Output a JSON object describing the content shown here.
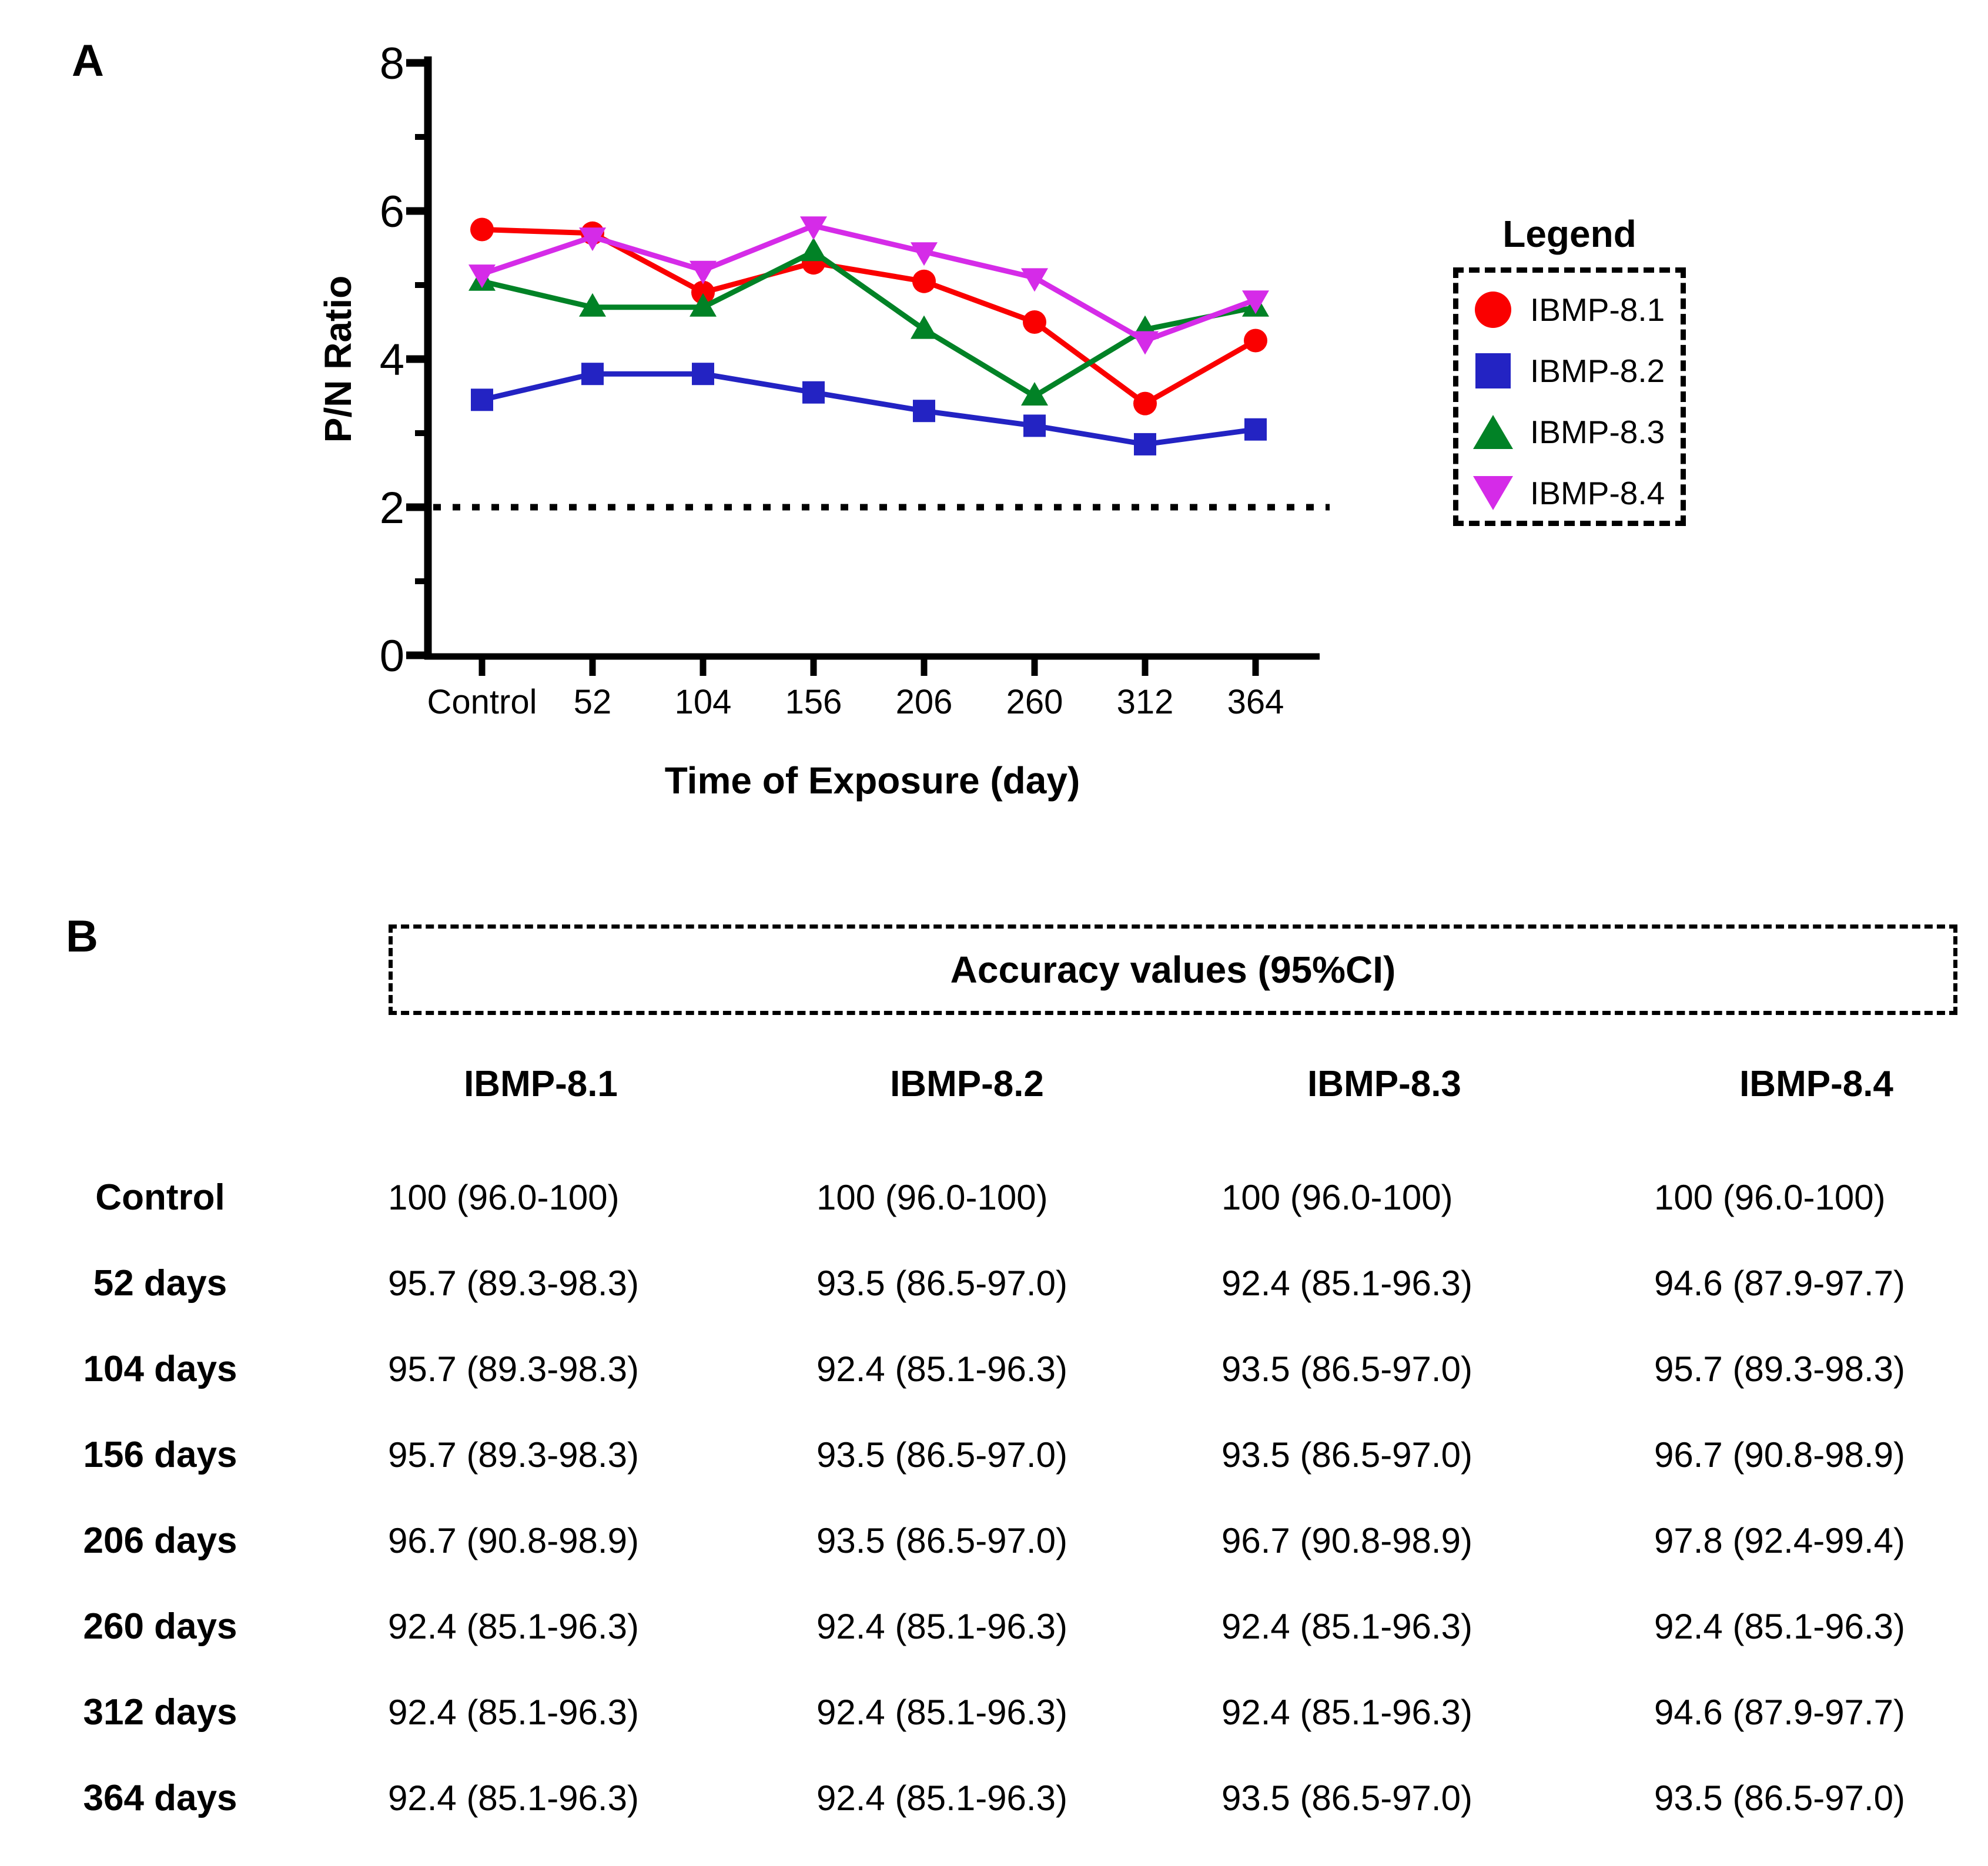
{
  "panel_a": {
    "label": "A",
    "legend_title": "Legend"
  },
  "chart_data": {
    "type": "line",
    "title": "",
    "categories": [
      "Control",
      "52",
      "104",
      "156",
      "206",
      "260",
      "312",
      "364"
    ],
    "xlabel": "Time of Exposure (day)",
    "ylabel": "P/N Ratio",
    "ylim": [
      0,
      8
    ],
    "yticks": [
      0,
      2,
      4,
      6,
      8
    ],
    "minor_yticks": [
      1,
      3,
      5,
      7
    ],
    "grid": false,
    "legend_position": "right",
    "reference_line": {
      "y": 2,
      "style": "dotted",
      "color": "#000000"
    },
    "series": [
      {
        "name": "IBMP-8.1",
        "marker": "circle",
        "color": "#FA0000",
        "values": [
          5.75,
          5.7,
          4.9,
          5.3,
          5.05,
          4.5,
          3.4,
          4.25
        ]
      },
      {
        "name": "IBMP-8.2",
        "marker": "square",
        "color": "#2323C3",
        "values": [
          3.45,
          3.8,
          3.8,
          3.55,
          3.3,
          3.1,
          2.85,
          3.05
        ]
      },
      {
        "name": "IBMP-8.3",
        "marker": "triangle-up",
        "color": "#018226",
        "values": [
          5.05,
          4.7,
          4.7,
          5.45,
          4.4,
          3.5,
          4.4,
          4.7
        ]
      },
      {
        "name": "IBMP-8.4",
        "marker": "triangle-down",
        "color": "#D52BE8",
        "values": [
          5.15,
          5.65,
          5.2,
          5.8,
          5.45,
          5.1,
          4.25,
          4.8
        ]
      }
    ]
  },
  "panel_b": {
    "label": "B",
    "title": "Accuracy values (95%CI)",
    "columns": [
      "IBMP-8.1",
      "IBMP-8.2",
      "IBMP-8.3",
      "IBMP-8.4"
    ],
    "rows": [
      {
        "label": "Control",
        "values": [
          "100 (96.0-100)",
          "100 (96.0-100)",
          "100 (96.0-100)",
          "100 (96.0-100)"
        ]
      },
      {
        "label": "52 days",
        "values": [
          "95.7 (89.3-98.3)",
          "93.5 (86.5-97.0)",
          "92.4 (85.1-96.3)",
          "94.6 (87.9-97.7)"
        ]
      },
      {
        "label": "104 days",
        "values": [
          "95.7 (89.3-98.3)",
          "92.4 (85.1-96.3)",
          "93.5 (86.5-97.0)",
          "95.7 (89.3-98.3)"
        ]
      },
      {
        "label": "156 days",
        "values": [
          "95.7 (89.3-98.3)",
          "93.5 (86.5-97.0)",
          "93.5 (86.5-97.0)",
          "96.7 (90.8-98.9)"
        ]
      },
      {
        "label": "206 days",
        "values": [
          "96.7 (90.8-98.9)",
          "93.5 (86.5-97.0)",
          "96.7 (90.8-98.9)",
          "97.8 (92.4-99.4)"
        ]
      },
      {
        "label": "260 days",
        "values": [
          "92.4 (85.1-96.3)",
          "92.4 (85.1-96.3)",
          "92.4 (85.1-96.3)",
          "92.4 (85.1-96.3)"
        ]
      },
      {
        "label": "312 days",
        "values": [
          "92.4 (85.1-96.3)",
          "92.4 (85.1-96.3)",
          "92.4 (85.1-96.3)",
          "94.6 (87.9-97.7)"
        ]
      },
      {
        "label": "364 days",
        "values": [
          "92.4 (85.1-96.3)",
          "92.4 (85.1-96.3)",
          "93.5 (86.5-97.0)",
          "93.5 (86.5-97.0)"
        ]
      }
    ]
  }
}
